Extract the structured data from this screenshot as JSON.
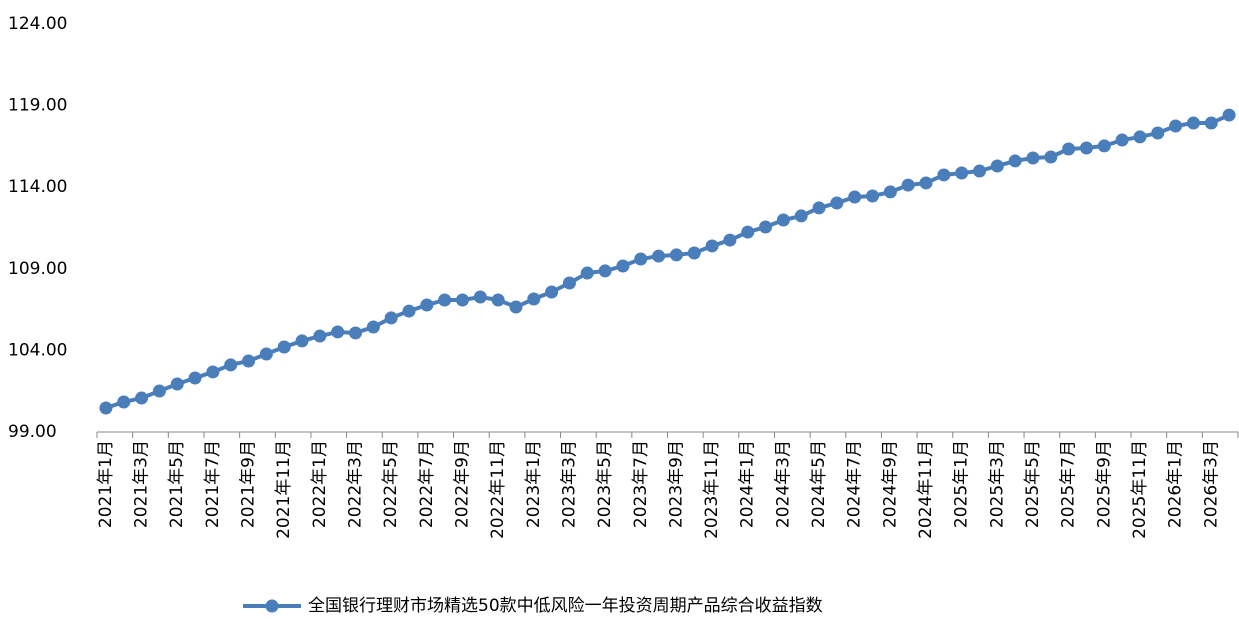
{
  "chart_data": {
    "type": "line",
    "categories": [
      "2021年1月",
      null,
      "2021年3月",
      null,
      "2021年5月",
      null,
      "2021年7月",
      null,
      "2021年9月",
      null,
      "2021年11月",
      null,
      "2022年1月",
      null,
      "2022年3月",
      null,
      "2022年5月",
      null,
      "2022年7月",
      null,
      "2022年9月",
      null,
      "2022年11月",
      null,
      "2023年1月",
      null,
      "2023年3月",
      null,
      "2023年5月",
      null,
      "2023年7月",
      null,
      "2023年9月",
      null,
      "2023年11月",
      null,
      "2024年1月",
      null,
      "2024年3月",
      null,
      "2024年5月",
      null,
      "2024年7月",
      null,
      "2024年9月",
      null,
      "2024年11月",
      null,
      "2025年1月",
      null,
      "2025年3月",
      null,
      "2025年5月",
      null,
      "2025年7月",
      null,
      "2025年9月",
      null,
      "2025年11月",
      null,
      "2026年1月",
      null,
      "2026年3月",
      null
    ],
    "series": [
      {
        "name": "全国银行理财市场精选50款中低风险一年投资周期产品综合收益指数",
        "color": "#4a7ebb",
        "values": [
          100.47,
          100.84,
          101.08,
          101.51,
          101.94,
          102.31,
          102.68,
          103.11,
          103.35,
          103.78,
          104.21,
          104.58,
          104.88,
          105.13,
          105.07,
          105.43,
          105.99,
          106.41,
          106.78,
          107.09,
          107.09,
          107.27,
          107.09,
          106.66,
          107.15,
          107.58,
          108.13,
          108.74,
          108.87,
          109.17,
          109.6,
          109.78,
          109.85,
          109.97,
          110.4,
          110.76,
          111.25,
          111.56,
          111.99,
          112.24,
          112.73,
          113.03,
          113.4,
          113.46,
          113.71,
          114.13,
          114.26,
          114.75,
          114.87,
          114.99,
          115.3,
          115.61,
          115.79,
          115.85,
          116.34,
          116.4,
          116.53,
          116.89,
          117.08,
          117.32,
          117.75,
          117.93,
          117.93,
          118.42
        ]
      }
    ],
    "ylim": [
      99,
      124
    ],
    "yticks": [
      {
        "value": 99,
        "label": "99.00"
      },
      {
        "value": 104,
        "label": "104.00"
      },
      {
        "value": 109,
        "label": "109.00"
      },
      {
        "value": 114,
        "label": "114.00"
      },
      {
        "value": 119,
        "label": "119.00"
      },
      {
        "value": 124,
        "label": "124.00"
      }
    ],
    "grid": false,
    "legend": "bottom"
  }
}
